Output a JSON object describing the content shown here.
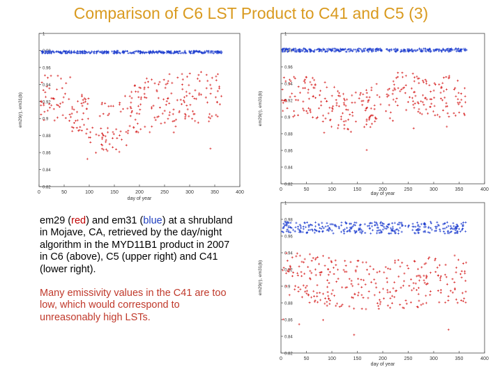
{
  "title": "Comparison of C6 LST Product to C41 and C5 (3)",
  "caption": {
    "part1": "em29 (",
    "red_word": "red",
    "part2": ") and em31 (",
    "blue_word": "blue",
    "part3": ") at a shrubland in Mojave, CA, retrieved by the day/night algorithm in the MYD11B1 product in 2007 in C6 (above), C5 (upper right) and C41 (lower right).",
    "note": "Many emissivity values in the C41 are too low, which would correspond to unreasonably high LSTs."
  },
  "colors": {
    "em29": "#d62020",
    "em31": "#1f3fcf",
    "title": "#d99a1f"
  },
  "chart_data": [
    {
      "type": "scatter",
      "panel": "C6",
      "xlabel": "day of year",
      "ylabel": "em29(r), em31(b)",
      "xlim": [
        0,
        400
      ],
      "ylim": [
        0.82,
        1.0
      ],
      "xticks": [
        "0",
        "50",
        "100",
        "150",
        "200",
        "250",
        "300",
        "350",
        "400"
      ],
      "yticks": [
        "0.82",
        "0.84",
        "0.86",
        "0.88",
        "0.9",
        "0.92",
        "0.94",
        "0.96",
        "0.98",
        "1"
      ],
      "series": [
        {
          "color": "#1f3fcf",
          "x_range": [
            2,
            365
          ],
          "mean": 0.978,
          "spread": 0.0015,
          "approx": "em31 nearly constant ~0.978 all year"
        },
        {
          "color": "#d62020",
          "x_range": [
            2,
            365
          ],
          "profile": [
            [
              0,
              0.925
            ],
            [
              60,
              0.92
            ],
            [
              100,
              0.9
            ],
            [
              150,
              0.885
            ],
            [
              200,
              0.915
            ],
            [
              260,
              0.925
            ],
            [
              365,
              0.925
            ]
          ],
          "spread": 0.03,
          "approx": "em29 scattered 0.86-0.96, dip near day 130-160"
        }
      ]
    },
    {
      "type": "scatter",
      "panel": "C5",
      "xlabel": "day of year",
      "ylabel": "em29(r), em31(b)",
      "xlim": [
        0,
        400
      ],
      "ylim": [
        0.82,
        1.0
      ],
      "xticks": [
        "0",
        "50",
        "100",
        "150",
        "200",
        "250",
        "300",
        "350",
        "400"
      ],
      "yticks": [
        "0.82",
        "0.84",
        "0.86",
        "0.88",
        "0.9",
        "0.92",
        "0.94",
        "0.96",
        "0.98",
        "1"
      ],
      "series": [
        {
          "color": "#1f3fcf",
          "x_range": [
            2,
            365
          ],
          "mean": 0.98,
          "spread": 0.002,
          "approx": "em31 ~0.98 all year"
        },
        {
          "color": "#d62020",
          "x_range": [
            2,
            365
          ],
          "profile": [
            [
              0,
              0.925
            ],
            [
              60,
              0.925
            ],
            [
              110,
              0.91
            ],
            [
              160,
              0.905
            ],
            [
              230,
              0.93
            ],
            [
              300,
              0.925
            ],
            [
              365,
              0.925
            ]
          ],
          "spread": 0.025,
          "approx": "em29 scattered 0.88-0.96"
        }
      ]
    },
    {
      "type": "scatter",
      "panel": "C41",
      "xlabel": "day of year",
      "ylabel": "em29(r), em31(b)",
      "xlim": [
        0,
        400
      ],
      "ylim": [
        0.82,
        1.0
      ],
      "xticks": [
        "0",
        "50",
        "100",
        "150",
        "200",
        "250",
        "300",
        "350",
        "400"
      ],
      "yticks": [
        "0.82",
        "0.84",
        "0.86",
        "0.88",
        "0.9",
        "0.92",
        "0.94",
        "0.96",
        "0.98",
        "1"
      ],
      "series": [
        {
          "color": "#1f3fcf",
          "x_range": [
            2,
            365
          ],
          "mean": 0.97,
          "spread": 0.007,
          "approx": "em31 ~0.955-0.985"
        },
        {
          "color": "#d62020",
          "x_range": [
            2,
            365
          ],
          "profile": [
            [
              0,
              0.915
            ],
            [
              100,
              0.905
            ],
            [
              200,
              0.9
            ],
            [
              300,
              0.905
            ],
            [
              365,
              0.91
            ]
          ],
          "spread": 0.03,
          "approx": "em29 scattered 0.84-0.94, outliers as low as 0.83"
        }
      ]
    }
  ]
}
